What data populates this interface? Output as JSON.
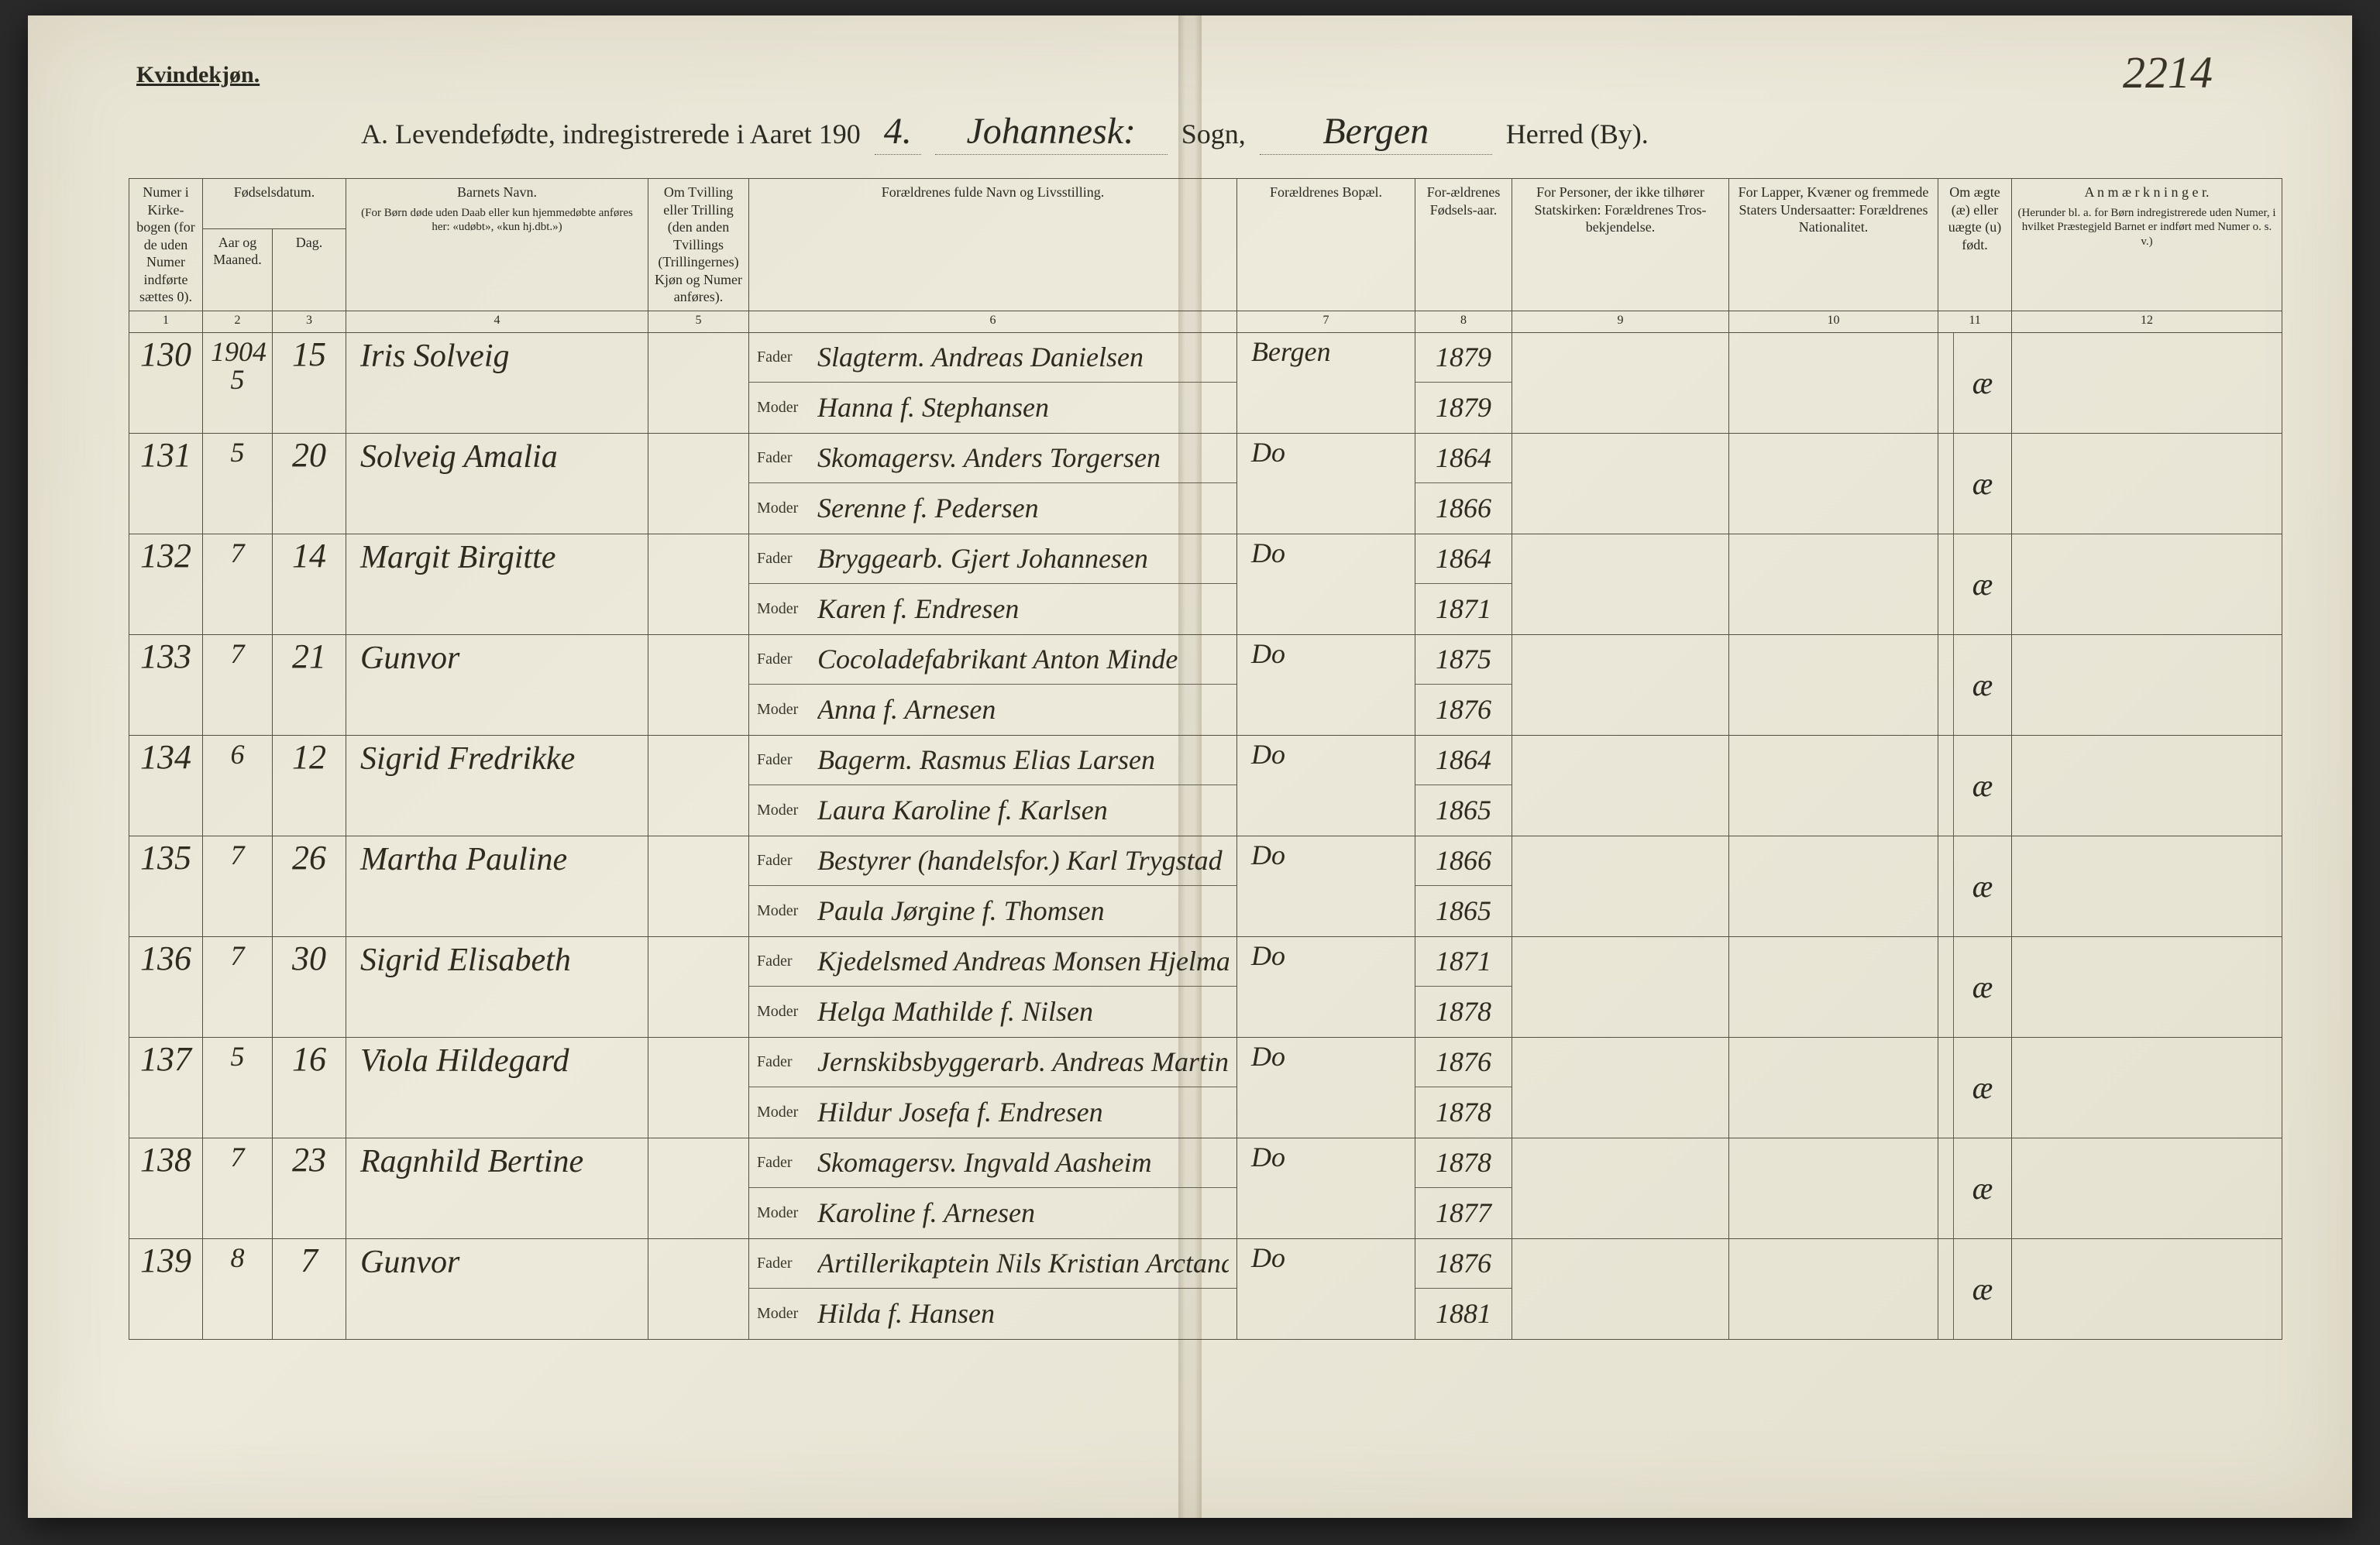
{
  "page_number_handwritten": "2214",
  "top_label": "Kvindekjøn.",
  "title": {
    "prefix": "A. Levendefødte, indregistrerede i Aaret 190",
    "year_suffix": "4.",
    "sogn_label": "Sogn,",
    "sogn_value": "Johannesk:",
    "herred_label": "Herred (By).",
    "herred_value": "Bergen"
  },
  "columns": {
    "c1": "Numer i Kirke-bogen (for de uden Numer indførte sættes 0).",
    "c2a": "Fødselsdatum.",
    "c2b": "Aar og Maaned.",
    "c3": "Dag.",
    "c4a": "Barnets Navn.",
    "c4b": "(For Børn døde uden Daab eller kun hjemmedøbte anføres her: «udøbt», «kun hj.dbt.»)",
    "c5": "Om Tvilling eller Trilling (den anden Tvillings (Trillingernes) Kjøn og Numer anføres).",
    "c6": "Forældrenes fulde Navn og Livsstilling.",
    "c7": "Forældrenes Bopæl.",
    "c8": "For-ældrenes Fødsels-aar.",
    "c9": "For Personer, der ikke tilhører Statskirken: Forældrenes Tros-bekjendelse.",
    "c10": "For Lapper, Kvæner og fremmede Staters Undersaatter: Forældrenes Nationalitet.",
    "c11": "Om ægte (æ) eller uægte (u) født.",
    "c12a": "A n m æ r k n i n g e r.",
    "c12b": "(Herunder bl. a. for Børn indregistrerede uden Numer, i hvilket Præstegjeld Barnet er indført med Numer o. s. v.)"
  },
  "col_numbers": [
    "1",
    "2",
    "3",
    "4",
    "5",
    "6",
    "7",
    "8",
    "9",
    "10",
    "11",
    "12"
  ],
  "parent_tags": {
    "fader": "Fader",
    "moder": "Moder"
  },
  "rows": [
    {
      "num": "130",
      "year_month": "1904\n5",
      "day": "15",
      "child": "Iris Solveig",
      "fader": "Slagterm. Andreas Danielsen",
      "moder": "Hanna f. Stephansen",
      "bopel": "Bergen",
      "fy": "1879",
      "my": "1879",
      "legit": "æ"
    },
    {
      "num": "131",
      "year_month": "5",
      "day": "20",
      "child": "Solveig Amalia",
      "fader": "Skomagersv. Anders Torgersen",
      "moder": "Serenne f. Pedersen",
      "bopel": "Do",
      "fy": "1864",
      "my": "1866",
      "legit": "æ"
    },
    {
      "num": "132",
      "year_month": "7",
      "day": "14",
      "child": "Margit Birgitte",
      "fader": "Bryggearb. Gjert Johannesen",
      "moder": "Karen f. Endresen",
      "bopel": "Do",
      "fy": "1864",
      "my": "1871",
      "legit": "æ"
    },
    {
      "num": "133",
      "year_month": "7",
      "day": "21",
      "child": "Gunvor",
      "fader": "Cocoladefabrikant Anton Minde",
      "moder": "Anna f. Arnesen",
      "bopel": "Do",
      "fy": "1875",
      "my": "1876",
      "legit": "æ"
    },
    {
      "num": "134",
      "year_month": "6",
      "day": "12",
      "child": "Sigrid Fredrikke",
      "fader": "Bagerm. Rasmus Elias Larsen",
      "moder": "Laura Karoline f. Karlsen",
      "bopel": "Do",
      "fy": "1864",
      "my": "1865",
      "legit": "æ"
    },
    {
      "num": "135",
      "year_month": "7",
      "day": "26",
      "child": "Martha Pauline",
      "fader": "Bestyrer (handelsfor.) Karl Trygstad",
      "moder": "Paula Jørgine f. Thomsen",
      "bopel": "Do",
      "fy": "1866",
      "my": "1865",
      "legit": "æ"
    },
    {
      "num": "136",
      "year_month": "7",
      "day": "30",
      "child": "Sigrid Elisabeth",
      "fader": "Kjedelsmed Andreas Monsen Hjelmaas",
      "moder": "Helga Mathilde f. Nilsen",
      "bopel": "Do",
      "fy": "1871",
      "my": "1878",
      "legit": "æ"
    },
    {
      "num": "137",
      "year_month": "5",
      "day": "16",
      "child": "Viola Hildegard",
      "fader": "Jernskibsbyggerarb. Andreas Martin Andersen",
      "moder": "Hildur Josefa f. Endresen",
      "bopel": "Do",
      "fy": "1876",
      "my": "1878",
      "legit": "æ"
    },
    {
      "num": "138",
      "year_month": "7",
      "day": "23",
      "child": "Ragnhild Bertine",
      "fader": "Skomagersv. Ingvald Aasheim",
      "moder": "Karoline f. Arnesen",
      "bopel": "Do",
      "fy": "1878",
      "my": "1877",
      "legit": "æ"
    },
    {
      "num": "139",
      "year_month": "8",
      "day": "7",
      "child": "Gunvor",
      "fader": "Artillerikaptein Nils Kristian Arctander",
      "moder": "Hilda f. Hansen",
      "bopel": "Do",
      "fy": "1876",
      "my": "1881",
      "legit": "æ"
    }
  ]
}
